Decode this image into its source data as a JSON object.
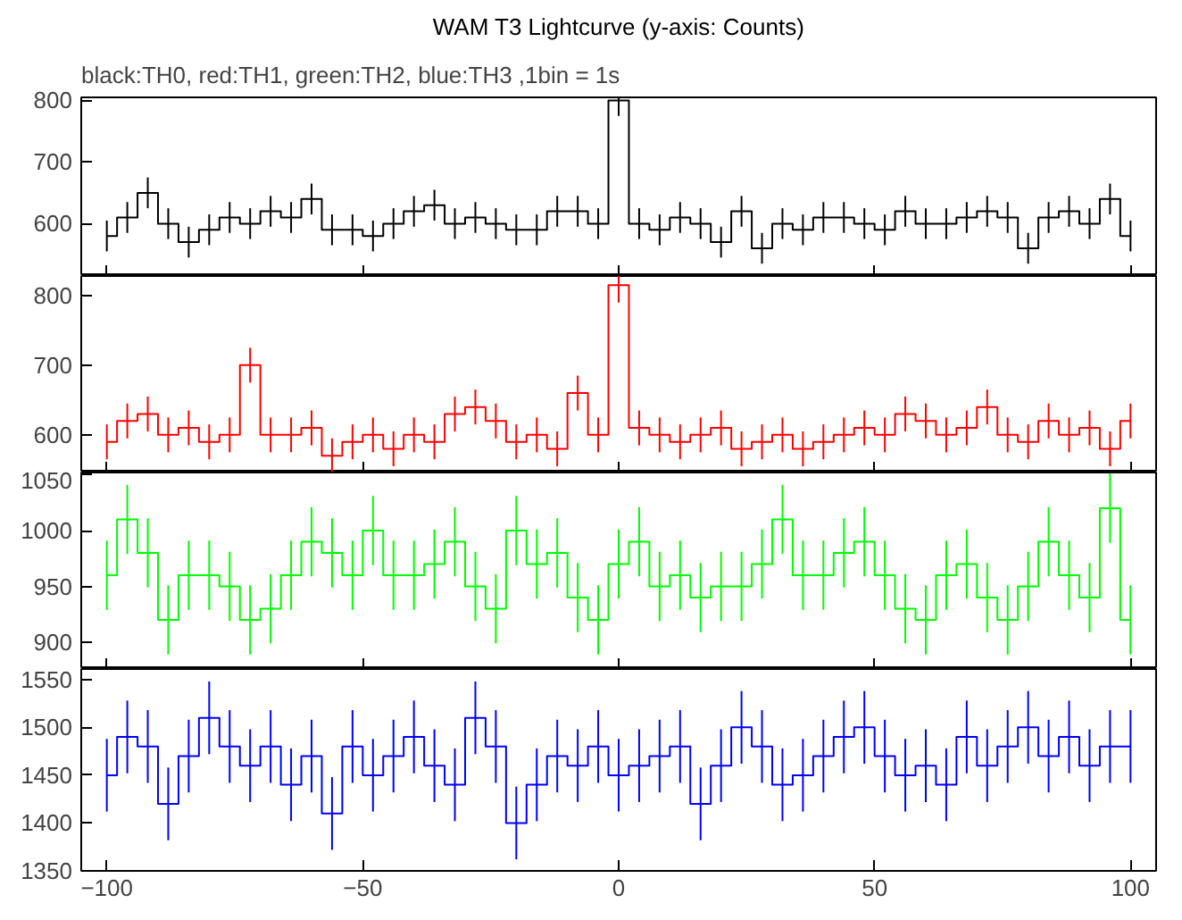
{
  "chart_data": [
    {
      "type": "step",
      "title": "WAM T3 Lightcurve (y-axis: Counts)",
      "subtitle": "black:TH0, red:TH1, green:TH2, blue:TH3 ,1bin = 1s",
      "xlim": [
        -105,
        105
      ],
      "xticks": [
        -100,
        -50,
        0,
        50,
        100
      ],
      "ylim": [
        515,
        805
      ],
      "yticks": [
        600,
        700,
        800
      ],
      "tick_labels": "y",
      "grid": false,
      "series": [
        {
          "color": "#000000",
          "x": [
            -100,
            -96,
            -92,
            -88,
            -84,
            -80,
            -76,
            -72,
            -68,
            -64,
            -60,
            -56,
            -52,
            -48,
            -44,
            -40,
            -36,
            -32,
            -28,
            -24,
            -20,
            -16,
            -12,
            -8,
            -4,
            0,
            4,
            8,
            12,
            16,
            20,
            24,
            28,
            32,
            36,
            40,
            44,
            48,
            52,
            56,
            60,
            64,
            68,
            72,
            76,
            80,
            84,
            88,
            92,
            96,
            100
          ],
          "values": [
            580,
            610,
            650,
            600,
            570,
            590,
            610,
            600,
            620,
            610,
            640,
            590,
            590,
            580,
            600,
            620,
            630,
            600,
            610,
            600,
            590,
            590,
            620,
            620,
            600,
            800,
            600,
            590,
            610,
            600,
            570,
            620,
            560,
            600,
            590,
            610,
            610,
            600,
            590,
            620,
            600,
            600,
            610,
            620,
            610,
            560,
            610,
            620,
            600,
            640,
            580
          ],
          "errors": [
            25,
            25,
            25,
            25,
            25,
            25,
            25,
            25,
            25,
            25,
            25,
            25,
            25,
            25,
            25,
            25,
            25,
            25,
            25,
            25,
            25,
            25,
            25,
            25,
            25,
            25,
            25,
            25,
            25,
            25,
            25,
            25,
            25,
            25,
            25,
            25,
            25,
            25,
            25,
            25,
            25,
            25,
            25,
            25,
            25,
            25,
            25,
            25,
            25,
            25,
            25
          ]
        }
      ]
    },
    {
      "type": "step",
      "xlim": [
        -105,
        105
      ],
      "xticks": [
        -100,
        -50,
        0,
        50,
        100
      ],
      "ylim": [
        546,
        828
      ],
      "yticks": [
        600,
        700,
        800
      ],
      "tick_labels": "y",
      "grid": false,
      "series": [
        {
          "color": "#ff0000",
          "x": [
            -100,
            -96,
            -92,
            -88,
            -84,
            -80,
            -76,
            -72,
            -68,
            -64,
            -60,
            -56,
            -52,
            -48,
            -44,
            -40,
            -36,
            -32,
            -28,
            -24,
            -20,
            -16,
            -12,
            -8,
            -4,
            0,
            4,
            8,
            12,
            16,
            20,
            24,
            28,
            32,
            36,
            40,
            44,
            48,
            52,
            56,
            60,
            64,
            68,
            72,
            76,
            80,
            84,
            88,
            92,
            96,
            100
          ],
          "values": [
            590,
            620,
            630,
            600,
            610,
            590,
            600,
            700,
            600,
            600,
            610,
            570,
            590,
            600,
            580,
            600,
            590,
            630,
            640,
            620,
            590,
            600,
            580,
            660,
            600,
            815,
            610,
            600,
            590,
            600,
            610,
            580,
            590,
            600,
            580,
            590,
            600,
            610,
            600,
            630,
            620,
            600,
            610,
            640,
            600,
            590,
            620,
            600,
            610,
            580,
            620
          ],
          "errors": [
            25,
            25,
            25,
            25,
            25,
            25,
            25,
            25,
            25,
            25,
            25,
            25,
            25,
            25,
            25,
            25,
            25,
            25,
            25,
            25,
            25,
            25,
            25,
            25,
            25,
            25,
            25,
            25,
            25,
            25,
            25,
            25,
            25,
            25,
            25,
            25,
            25,
            25,
            25,
            25,
            25,
            25,
            25,
            25,
            25,
            25,
            25,
            25,
            25,
            25,
            25
          ]
        }
      ]
    },
    {
      "type": "step",
      "xlim": [
        -105,
        105
      ],
      "xticks": [
        -100,
        -50,
        0,
        50,
        100
      ],
      "ylim": [
        876,
        1052
      ],
      "yticks": [
        900,
        950,
        1000,
        1050
      ],
      "tick_labels": "y",
      "grid": false,
      "series": [
        {
          "color": "#00ff00",
          "x": [
            -100,
            -96,
            -92,
            -88,
            -84,
            -80,
            -76,
            -72,
            -68,
            -64,
            -60,
            -56,
            -52,
            -48,
            -44,
            -40,
            -36,
            -32,
            -28,
            -24,
            -20,
            -16,
            -12,
            -8,
            -4,
            0,
            4,
            8,
            12,
            16,
            20,
            24,
            28,
            32,
            36,
            40,
            44,
            48,
            52,
            56,
            60,
            64,
            68,
            72,
            76,
            80,
            84,
            88,
            92,
            96,
            100
          ],
          "values": [
            960,
            1010,
            980,
            920,
            960,
            960,
            950,
            920,
            930,
            960,
            990,
            980,
            960,
            1000,
            960,
            960,
            970,
            990,
            950,
            930,
            1000,
            970,
            980,
            940,
            920,
            970,
            990,
            950,
            960,
            940,
            950,
            950,
            970,
            1010,
            960,
            960,
            980,
            990,
            960,
            930,
            920,
            960,
            970,
            940,
            920,
            950,
            990,
            960,
            940,
            1020,
            920
          ],
          "errors": [
            31,
            31,
            31,
            31,
            31,
            31,
            31,
            31,
            31,
            31,
            31,
            31,
            31,
            31,
            31,
            31,
            31,
            31,
            31,
            31,
            31,
            31,
            31,
            31,
            31,
            31,
            31,
            31,
            31,
            31,
            31,
            31,
            31,
            31,
            31,
            31,
            31,
            31,
            31,
            31,
            31,
            31,
            31,
            31,
            31,
            31,
            31,
            31,
            31,
            31,
            31
          ]
        }
      ]
    },
    {
      "type": "step",
      "xlim": [
        -105,
        105
      ],
      "xticks": [
        -100,
        -50,
        0,
        50,
        100
      ],
      "ylim": [
        1350,
        1561
      ],
      "yticks": [
        1350,
        1400,
        1450,
        1500,
        1550
      ],
      "grid": false,
      "series": [
        {
          "color": "#0000ff",
          "x": [
            -100,
            -96,
            -92,
            -88,
            -84,
            -80,
            -76,
            -72,
            -68,
            -64,
            -60,
            -56,
            -52,
            -48,
            -44,
            -40,
            -36,
            -32,
            -28,
            -24,
            -20,
            -16,
            -12,
            -8,
            -4,
            0,
            4,
            8,
            12,
            16,
            20,
            24,
            28,
            32,
            36,
            40,
            44,
            48,
            52,
            56,
            60,
            64,
            68,
            72,
            76,
            80,
            84,
            88,
            92,
            96,
            100
          ],
          "values": [
            1450,
            1490,
            1480,
            1420,
            1470,
            1510,
            1480,
            1460,
            1480,
            1440,
            1470,
            1410,
            1480,
            1450,
            1470,
            1490,
            1460,
            1440,
            1510,
            1480,
            1400,
            1440,
            1470,
            1460,
            1480,
            1450,
            1460,
            1470,
            1480,
            1420,
            1460,
            1500,
            1480,
            1440,
            1450,
            1470,
            1490,
            1500,
            1470,
            1450,
            1460,
            1440,
            1490,
            1460,
            1480,
            1500,
            1470,
            1490,
            1460,
            1480,
            1480
          ],
          "errors": [
            38,
            38,
            38,
            38,
            38,
            38,
            38,
            38,
            38,
            38,
            38,
            38,
            38,
            38,
            38,
            38,
            38,
            38,
            38,
            38,
            38,
            38,
            38,
            38,
            38,
            38,
            38,
            38,
            38,
            38,
            38,
            38,
            38,
            38,
            38,
            38,
            38,
            38,
            38,
            38,
            38,
            38,
            38,
            38,
            38,
            38,
            38,
            38,
            38,
            38,
            38
          ]
        }
      ]
    }
  ]
}
